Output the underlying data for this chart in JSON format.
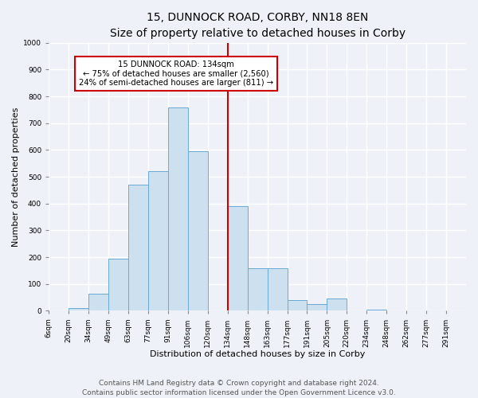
{
  "title": "15, DUNNOCK ROAD, CORBY, NN18 8EN",
  "subtitle": "Size of property relative to detached houses in Corby",
  "xlabel": "Distribution of detached houses by size in Corby",
  "ylabel": "Number of detached properties",
  "bin_labels": [
    "6sqm",
    "20sqm",
    "34sqm",
    "49sqm",
    "63sqm",
    "77sqm",
    "91sqm",
    "106sqm",
    "120sqm",
    "134sqm",
    "148sqm",
    "163sqm",
    "177sqm",
    "191sqm",
    "205sqm",
    "220sqm",
    "234sqm",
    "248sqm",
    "262sqm",
    "277sqm",
    "291sqm"
  ],
  "bar_values": [
    0,
    10,
    65,
    195,
    470,
    520,
    760,
    595,
    0,
    390,
    160,
    160,
    40,
    25,
    45,
    0,
    5,
    0,
    0,
    0,
    0
  ],
  "bar_color": "#cce0f0",
  "bar_edge_color": "#6aaad4",
  "vline_color": "#cc0000",
  "ylim": [
    0,
    1000
  ],
  "yticks": [
    0,
    100,
    200,
    300,
    400,
    500,
    600,
    700,
    800,
    900,
    1000
  ],
  "annotation_title": "15 DUNNOCK ROAD: 134sqm",
  "annotation_line1": "← 75% of detached houses are smaller (2,560)",
  "annotation_line2": "24% of semi-detached houses are larger (811) →",
  "annotation_box_color": "#ffffff",
  "annotation_border_color": "#cc0000",
  "footer_line1": "Contains HM Land Registry data © Crown copyright and database right 2024.",
  "footer_line2": "Contains public sector information licensed under the Open Government Licence v3.0.",
  "background_color": "#eef2f8",
  "grid_color": "#ffffff",
  "title_fontsize": 10,
  "subtitle_fontsize": 9,
  "axis_label_fontsize": 8,
  "tick_fontsize": 6.5,
  "footer_fontsize": 6.5,
  "vline_index": 9,
  "n_bins": 21
}
